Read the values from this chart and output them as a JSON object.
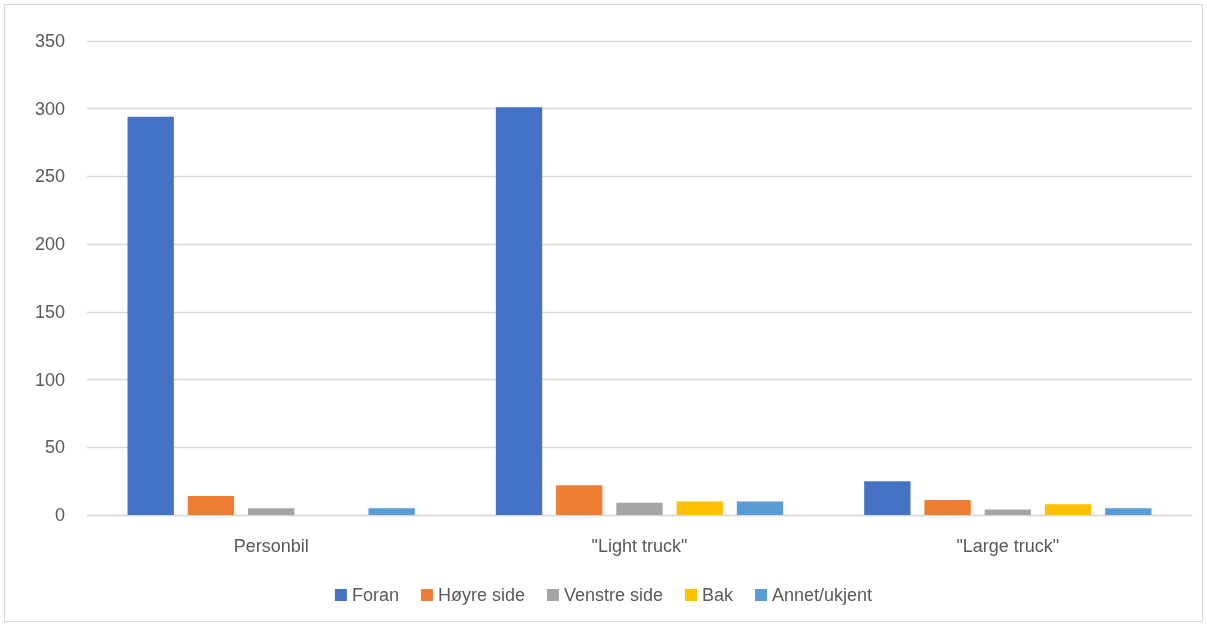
{
  "chart_data": {
    "type": "bar",
    "categories": [
      "Personbil",
      "\"Light truck\"",
      "\"Large truck\""
    ],
    "series": [
      {
        "name": "Foran",
        "color": "#4472c4",
        "values": [
          294,
          301,
          25
        ]
      },
      {
        "name": "Høyre side",
        "color": "#ed7d31",
        "values": [
          14,
          22,
          11
        ]
      },
      {
        "name": "Venstre side",
        "color": "#a5a5a5",
        "values": [
          5,
          9,
          4
        ]
      },
      {
        "name": "Bak",
        "color": "#ffc000",
        "values": [
          0,
          10,
          8
        ]
      },
      {
        "name": "Annet/ukjent",
        "color": "#5b9bd5",
        "values": [
          5,
          10,
          5
        ]
      }
    ],
    "ylim": [
      0,
      350
    ],
    "yticks": [
      0,
      50,
      100,
      150,
      200,
      250,
      300,
      350
    ],
    "grid": "y",
    "legend": "bottom"
  }
}
